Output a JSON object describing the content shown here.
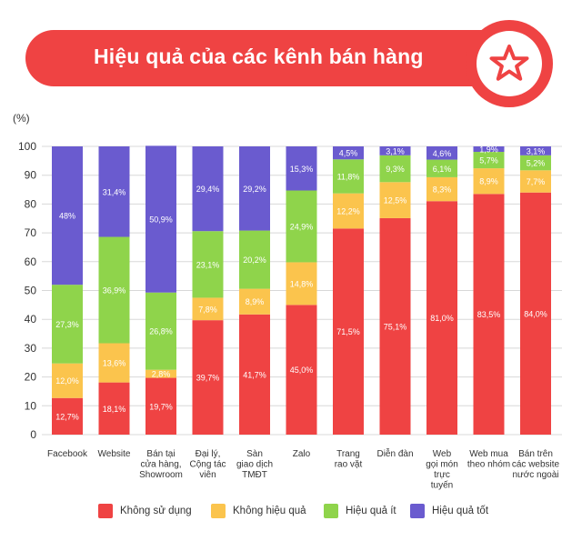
{
  "title": "Hiệu quả của các kênh bán hàng",
  "icons": {
    "badge": "star-icon"
  },
  "colors": {
    "banner": "#ef4343",
    "khong_su_dung": "#ef4343",
    "khong_hieu_qua": "#fbc44d",
    "hieu_qua_it": "#8fd44b",
    "hieu_qua_tot": "#6a5bcf"
  },
  "chart_data": {
    "type": "bar",
    "stacked": true,
    "ylabel": "(%)",
    "ylim": [
      0,
      100
    ],
    "yticks": [
      0,
      10,
      20,
      30,
      40,
      50,
      60,
      70,
      80,
      90,
      100
    ],
    "grid": true,
    "legend_position": "bottom",
    "categories": [
      [
        "Facebook"
      ],
      [
        "Website"
      ],
      [
        "Bán tại",
        "cửa hàng,",
        "Showroom"
      ],
      [
        "Đại lý,",
        "Cộng tác",
        "viên"
      ],
      [
        "Sàn",
        "giao dịch",
        "TMĐT"
      ],
      [
        "Zalo"
      ],
      [
        "Trang",
        "rao vặt"
      ],
      [
        "Diễn đàn"
      ],
      [
        "Web",
        "gọi món",
        "trực",
        "tuyến"
      ],
      [
        "Web mua",
        "theo nhóm"
      ],
      [
        "Bán trên",
        "các website",
        "nước ngoài"
      ]
    ],
    "series": [
      {
        "name": "Không sử dụng",
        "values": [
          12.7,
          18.1,
          19.7,
          39.7,
          41.7,
          45.0,
          71.5,
          75.1,
          81.0,
          83.5,
          84.0
        ],
        "labels": [
          "12,7%",
          "18,1%",
          "19,7%",
          "39,7%",
          "41,7%",
          "45,0%",
          "71,5%",
          "75,1%",
          "81,0%",
          "83,5%",
          "84,0%"
        ]
      },
      {
        "name": "Không hiệu quả",
        "values": [
          12.0,
          13.6,
          2.8,
          7.8,
          8.9,
          14.8,
          12.2,
          12.5,
          8.3,
          8.9,
          7.7
        ],
        "labels": [
          "12,0%",
          "13,6%",
          "2,8%",
          "7,8%",
          "8,9%",
          "14,8%",
          "12,2%",
          "12,5%",
          "8,3%",
          "8,9%",
          "7,7%"
        ]
      },
      {
        "name": "Hiệu quả ít",
        "values": [
          27.3,
          36.9,
          26.8,
          23.1,
          20.2,
          24.9,
          11.8,
          9.3,
          6.1,
          5.7,
          5.2
        ],
        "labels": [
          "27,3%",
          "36,9%",
          "26,8%",
          "23,1%",
          "20,2%",
          "24,9%",
          "11,8%",
          "9,3%",
          "6,1%",
          "5,7%",
          "5,2%"
        ]
      },
      {
        "name": "Hiệu quả tốt",
        "values": [
          48.0,
          31.4,
          50.9,
          29.4,
          29.2,
          15.3,
          4.5,
          3.1,
          4.6,
          1.9,
          3.1
        ],
        "labels": [
          "48%",
          "31,4%",
          "50,9%",
          "29,4%",
          "29,2%",
          "15,3%",
          "4,5%",
          "3,1%",
          "4,6%",
          "1,9%",
          "3,1%"
        ]
      }
    ]
  }
}
